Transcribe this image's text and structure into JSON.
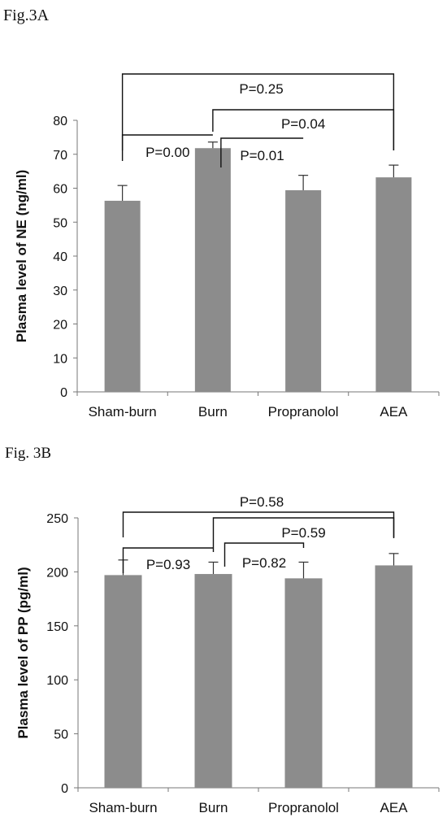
{
  "figures": {
    "a_label": "Fig.3A",
    "b_label": "Fig. 3B"
  },
  "chart_data": [
    {
      "type": "bar",
      "title": "",
      "xlabel": "",
      "ylabel": "Plasma level of NE (ng/ml)",
      "categories": [
        "Sham-burn",
        "Burn",
        "Propranolol",
        "AEA"
      ],
      "values": [
        56.3,
        71.8,
        59.4,
        63.2
      ],
      "errors": [
        4.5,
        1.8,
        4.4,
        3.6
      ],
      "ylim": [
        0,
        80
      ],
      "yticks": [
        0,
        10,
        20,
        30,
        40,
        50,
        60,
        70,
        80
      ],
      "grid": false,
      "bar_color": "#8c8c8c",
      "annotations": [
        {
          "from": "Sham-burn",
          "to": "Burn",
          "text": "P=0.00"
        },
        {
          "from": "Burn",
          "to": "Propranolol",
          "text": "P=0.01"
        },
        {
          "from": "Burn",
          "to": "AEA",
          "text": "P=0.04"
        },
        {
          "from": "Sham-burn",
          "to": "AEA",
          "text": "P=0.25"
        }
      ]
    },
    {
      "type": "bar",
      "title": "",
      "xlabel": "",
      "ylabel": "Plasma level of PP (pg/ml)",
      "categories": [
        "Sham-burn",
        "Burn",
        "Propranolol",
        "AEA"
      ],
      "values": [
        197,
        198,
        194,
        206
      ],
      "errors": [
        14,
        11,
        15,
        11
      ],
      "ylim": [
        0,
        250
      ],
      "yticks": [
        0,
        50,
        100,
        150,
        200,
        250
      ],
      "grid": false,
      "bar_color": "#8c8c8c",
      "annotations": [
        {
          "from": "Sham-burn",
          "to": "Burn",
          "text": "P=0.93"
        },
        {
          "from": "Burn",
          "to": "Propranolol",
          "text": "P=0.82"
        },
        {
          "from": "Burn",
          "to": "AEA",
          "text": "P=0.59"
        },
        {
          "from": "Sham-burn",
          "to": "AEA",
          "text": "P=0.58"
        }
      ]
    }
  ]
}
